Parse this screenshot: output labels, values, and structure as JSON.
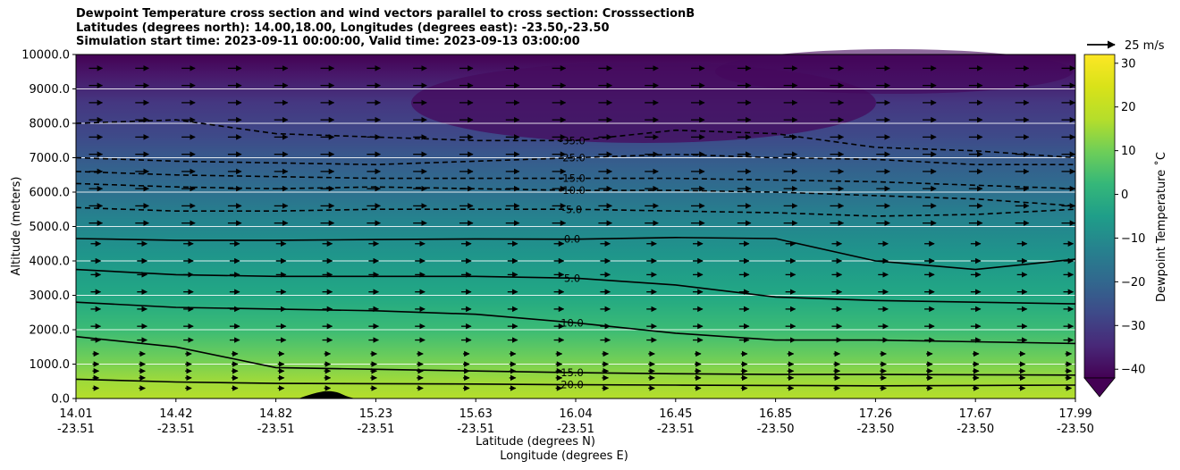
{
  "chart_data": {
    "type": "contour",
    "title": {
      "line1": "Dewpoint Temperature cross section and wind vectors parallel to cross section: CrosssectionB",
      "line2": "Latitudes (degrees north): 14.00,18.00, Longitudes (degrees east): -23.50,-23.50",
      "line3": "Simulation start time: 2023-09-11 00:00:00, Valid time: 2023-09-13 03:00:00"
    },
    "xlabel_lat": "Latitude (degrees N)",
    "xlabel_lon": "Longitude (degrees E)",
    "ylabel": "Altitude (meters)",
    "ylim": [
      0,
      10000
    ],
    "yticks": [
      "0.0",
      "1000.0",
      "2000.0",
      "3000.0",
      "4000.0",
      "5000.0",
      "6000.0",
      "7000.0",
      "8000.0",
      "9000.0",
      "10000.0"
    ],
    "xticks": [
      {
        "lat": "14.01",
        "lon": "-23.51"
      },
      {
        "lat": "14.42",
        "lon": "-23.51"
      },
      {
        "lat": "14.82",
        "lon": "-23.51"
      },
      {
        "lat": "15.23",
        "lon": "-23.51"
      },
      {
        "lat": "15.63",
        "lon": "-23.51"
      },
      {
        "lat": "16.04",
        "lon": "-23.51"
      },
      {
        "lat": "16.45",
        "lon": "-23.51"
      },
      {
        "lat": "16.85",
        "lon": "-23.50"
      },
      {
        "lat": "17.26",
        "lon": "-23.50"
      },
      {
        "lat": "17.67",
        "lon": "-23.50"
      },
      {
        "lat": "17.99",
        "lon": "-23.50"
      }
    ],
    "colorbar": {
      "label": "Dewpoint Temperature ˚C",
      "ticks": [
        "30",
        "20",
        "10",
        "0",
        "−10",
        "−20",
        "−30",
        "−40"
      ],
      "range": [
        -42,
        32
      ],
      "colormap": "viridis"
    },
    "quiver_key": "25 m/s",
    "contours": [
      {
        "level": "20.0",
        "heights": [
          560,
          480,
          440,
          430,
          420,
          400,
          390,
          380,
          370,
          380,
          390
        ]
      },
      {
        "level": "15.0",
        "heights": [
          1800,
          1500,
          900,
          850,
          800,
          750,
          720,
          700,
          700,
          690,
          680
        ]
      },
      {
        "level": "10.0",
        "heights": [
          2800,
          2650,
          2600,
          2550,
          2450,
          2200,
          1900,
          1700,
          1700,
          1650,
          1600
        ]
      },
      {
        "level": "5.0",
        "heights": [
          3750,
          3600,
          3550,
          3550,
          3550,
          3500,
          3300,
          2950,
          2850,
          2800,
          2750
        ]
      },
      {
        "level": "0.0",
        "heights": [
          4650,
          4600,
          4600,
          4620,
          4640,
          4630,
          4680,
          4650,
          4000,
          3750,
          4050
        ]
      },
      {
        "level": "-5.0",
        "heights": [
          5550,
          5450,
          5450,
          5500,
          5500,
          5500,
          5450,
          5400,
          5300,
          5350,
          5500
        ]
      },
      {
        "level": "-10.0",
        "heights": [
          6250,
          6150,
          6100,
          6150,
          6100,
          6050,
          6050,
          6000,
          5900,
          5800,
          5600
        ]
      },
      {
        "level": "-15.0",
        "heights": [
          6600,
          6500,
          6450,
          6400,
          6400,
          6400,
          6400,
          6350,
          6300,
          6200,
          6100
        ]
      },
      {
        "level": "-25.0",
        "heights": [
          7000,
          6900,
          6850,
          6800,
          6900,
          7000,
          7100,
          7000,
          6950,
          6800,
          6800
        ]
      },
      {
        "level": "-35.0",
        "heights": [
          8000,
          8100,
          7700,
          7600,
          7500,
          7500,
          7800,
          7700,
          7300,
          7200,
          7000
        ]
      }
    ],
    "wind_arrow_rows_m": [
      300,
      600,
      800,
      1000,
      1300,
      1700,
      2100,
      2600,
      3100,
      3600,
      4000,
      4500,
      5100,
      5600,
      6100,
      6600,
      7100,
      7600,
      8100,
      8600,
      9100,
      9600
    ]
  }
}
